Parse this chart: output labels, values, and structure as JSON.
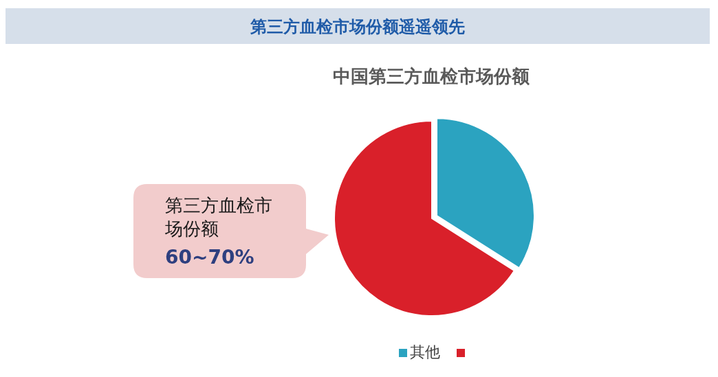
{
  "chart_data": {
    "type": "pie",
    "title": "第三方血检市场份额遥遥领先",
    "subtitle": "中国第三方血检市场份额",
    "categories": [
      "其他",
      null
    ],
    "values": [
      34,
      66
    ],
    "colors": [
      "#2ba3c0",
      "#d9202a"
    ],
    "legend": "bottom",
    "annotations": [
      "第三方血检市场份额",
      "60~70%"
    ]
  }
}
